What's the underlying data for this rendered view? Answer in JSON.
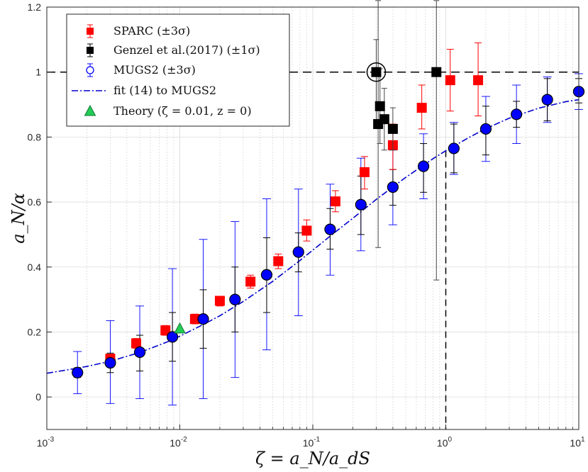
{
  "chart_data": {
    "type": "scatter",
    "xscale": "log",
    "xlim": [
      0.001,
      10
    ],
    "ylim": [
      -0.1,
      1.2
    ],
    "grid": true,
    "legend_position": "top-left",
    "xlabel": "ζ = a_N/a_dS",
    "ylabel": "a_N/α",
    "x_tick_labels": [
      {
        "x": 0.001,
        "base": "10",
        "exp": "-3"
      },
      {
        "x": 0.01,
        "base": "10",
        "exp": "-2"
      },
      {
        "x": 0.1,
        "base": "10",
        "exp": "-1"
      },
      {
        "x": 1,
        "base": "10",
        "exp": "0"
      },
      {
        "x": 10,
        "base": "10",
        "exp": "1"
      }
    ],
    "y_tick_labels": [
      {
        "y": 0,
        "label": "0"
      },
      {
        "y": 0.2,
        "label": "0.2"
      },
      {
        "y": 0.4,
        "label": "0.4"
      },
      {
        "y": 0.6,
        "label": "0.6"
      },
      {
        "y": 0.8,
        "label": "0.8"
      },
      {
        "y": 1,
        "label": "1"
      },
      {
        "y": 1.2,
        "label": "1.2"
      }
    ],
    "colors": {
      "sparc": "#ff0000",
      "genzel": "#000000",
      "mugs2_fill": "#0000ff",
      "mugs2_err": "#0000ff",
      "fit": "#0000cc",
      "theory": "#22cc55"
    },
    "legend": [
      {
        "key": "sparc",
        "text": "SPARC (±3σ)"
      },
      {
        "key": "genzel",
        "text": "Genzel et al.(2017) (±1σ)"
      },
      {
        "key": "mugs2",
        "text": "MUGS2 (±3σ)"
      },
      {
        "key": "fit",
        "text": "fit (14) to MUGS2"
      },
      {
        "key": "theory",
        "text": "Theory (ζ = 0.01, z = 0)"
      }
    ],
    "series": [
      {
        "name": "MUGS2 (±3σ)",
        "points": [
          {
            "x": 0.0017,
            "y": 0.075,
            "lo": 0.01,
            "hi": 0.14
          },
          {
            "x": 0.003,
            "y": 0.105,
            "lo": -0.02,
            "hi": 0.235
          },
          {
            "x": 0.005,
            "y": 0.138,
            "lo": -0.005,
            "hi": 0.28
          },
          {
            "x": 0.0088,
            "y": 0.185,
            "lo": -0.025,
            "hi": 0.395
          },
          {
            "x": 0.015,
            "y": 0.24,
            "lo": -0.005,
            "hi": 0.485
          },
          {
            "x": 0.026,
            "y": 0.3,
            "lo": 0.06,
            "hi": 0.54
          },
          {
            "x": 0.045,
            "y": 0.376,
            "lo": 0.145,
            "hi": 0.61
          },
          {
            "x": 0.078,
            "y": 0.446,
            "lo": 0.25,
            "hi": 0.64
          },
          {
            "x": 0.135,
            "y": 0.516,
            "lo": 0.375,
            "hi": 0.655
          },
          {
            "x": 0.23,
            "y": 0.592,
            "lo": 0.45,
            "hi": 0.735
          },
          {
            "x": 0.4,
            "y": 0.646,
            "lo": 0.53,
            "hi": 0.76
          },
          {
            "x": 0.68,
            "y": 0.71,
            "lo": 0.61,
            "hi": 0.81
          },
          {
            "x": 1.15,
            "y": 0.765,
            "lo": 0.685,
            "hi": 0.845
          },
          {
            "x": 2.0,
            "y": 0.825,
            "lo": 0.725,
            "hi": 0.925
          },
          {
            "x": 3.4,
            "y": 0.87,
            "lo": 0.78,
            "hi": 0.96
          },
          {
            "x": 5.8,
            "y": 0.915,
            "lo": 0.845,
            "hi": 0.985
          },
          {
            "x": 10,
            "y": 0.94,
            "lo": 0.885,
            "hi": 0.995
          }
        ],
        "inner_errors": [
          {
            "x": 0.0017,
            "lo": 0.06,
            "hi": 0.09
          },
          {
            "x": 0.003,
            "lo": 0.075,
            "hi": 0.135
          },
          {
            "x": 0.005,
            "lo": 0.08,
            "hi": 0.19
          },
          {
            "x": 0.0088,
            "lo": 0.11,
            "hi": 0.26
          },
          {
            "x": 0.015,
            "lo": 0.15,
            "hi": 0.33
          },
          {
            "x": 0.026,
            "lo": 0.2,
            "hi": 0.4
          },
          {
            "x": 0.045,
            "lo": 0.26,
            "hi": 0.49
          },
          {
            "x": 0.078,
            "lo": 0.385,
            "hi": 0.505
          },
          {
            "x": 0.135,
            "lo": 0.455,
            "hi": 0.58
          },
          {
            "x": 0.23,
            "lo": 0.5,
            "hi": 0.68
          },
          {
            "x": 0.4,
            "lo": 0.59,
            "hi": 0.7
          },
          {
            "x": 0.68,
            "lo": 0.63,
            "hi": 0.78
          },
          {
            "x": 1.15,
            "lo": 0.69,
            "hi": 0.84
          },
          {
            "x": 2.0,
            "lo": 0.745,
            "hi": 0.895
          },
          {
            "x": 3.4,
            "lo": 0.83,
            "hi": 0.91
          },
          {
            "x": 5.8,
            "lo": 0.85,
            "hi": 0.98
          },
          {
            "x": 10,
            "lo": 0.905,
            "hi": 0.98
          }
        ]
      },
      {
        "name": "SPARC (±3σ)",
        "points": [
          {
            "x": 0.003,
            "y": 0.118,
            "lo": 0.105,
            "hi": 0.13
          },
          {
            "x": 0.0047,
            "y": 0.165,
            "lo": 0.15,
            "hi": 0.18
          },
          {
            "x": 0.0078,
            "y": 0.205,
            "lo": 0.19,
            "hi": 0.22
          },
          {
            "x": 0.013,
            "y": 0.24,
            "lo": 0.225,
            "hi": 0.255
          },
          {
            "x": 0.02,
            "y": 0.296,
            "lo": 0.28,
            "hi": 0.31
          },
          {
            "x": 0.034,
            "y": 0.355,
            "lo": 0.335,
            "hi": 0.375
          },
          {
            "x": 0.055,
            "y": 0.418,
            "lo": 0.395,
            "hi": 0.44
          },
          {
            "x": 0.09,
            "y": 0.512,
            "lo": 0.48,
            "hi": 0.545
          },
          {
            "x": 0.148,
            "y": 0.602,
            "lo": 0.57,
            "hi": 0.635
          },
          {
            "x": 0.245,
            "y": 0.692,
            "lo": 0.64,
            "hi": 0.74
          },
          {
            "x": 0.4,
            "y": 0.775,
            "lo": 0.7,
            "hi": 0.84
          },
          {
            "x": 0.66,
            "y": 0.89,
            "lo": 0.825,
            "hi": 0.96
          },
          {
            "x": 1.08,
            "y": 0.975,
            "lo": 0.88,
            "hi": 1.07
          },
          {
            "x": 1.75,
            "y": 0.975,
            "lo": 0.865,
            "hi": 1.09
          }
        ]
      },
      {
        "name": "Genzel et al.(2017) (±1σ)",
        "points": [
          {
            "x": 0.3,
            "y": 1.0,
            "lo": 0.84,
            "hi": 1.1,
            "circled": true
          },
          {
            "x": 0.31,
            "y": 0.84,
            "lo": 0.46,
            "hi": 1.22
          },
          {
            "x": 0.32,
            "y": 0.895,
            "lo": 0.78,
            "hi": 1.01
          },
          {
            "x": 0.345,
            "y": 0.855,
            "lo": 0.76,
            "hi": 0.95
          },
          {
            "x": 0.4,
            "y": 0.825,
            "lo": 0.76,
            "hi": 0.89
          },
          {
            "x": 0.85,
            "y": 1.0,
            "lo": 0.36,
            "hi": 1.22
          }
        ]
      },
      {
        "name": "Theory (ζ = 0.01, z = 0)",
        "points": [
          {
            "x": 0.01,
            "y": 0.21
          }
        ]
      }
    ],
    "fit_curve": {
      "name": "fit (14) to MUGS2",
      "x": [
        0.001,
        0.0015,
        0.002,
        0.003,
        0.005,
        0.008,
        0.01,
        0.015,
        0.02,
        0.03,
        0.05,
        0.08,
        0.1,
        0.15,
        0.2,
        0.3,
        0.5,
        0.8,
        1,
        1.5,
        2,
        3,
        5,
        8,
        10
      ],
      "y": [
        0.073,
        0.085,
        0.094,
        0.11,
        0.137,
        0.169,
        0.187,
        0.223,
        0.25,
        0.294,
        0.356,
        0.42,
        0.452,
        0.51,
        0.55,
        0.608,
        0.676,
        0.733,
        0.758,
        0.799,
        0.826,
        0.858,
        0.889,
        0.909,
        0.915
      ]
    },
    "reference_lines": {
      "horizontal_y": 1.0,
      "vertical_x": 1.0
    }
  }
}
